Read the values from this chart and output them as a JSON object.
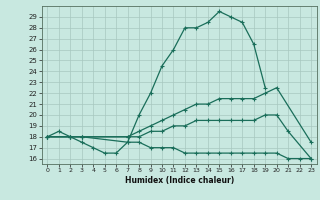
{
  "xlabel": "Humidex (Indice chaleur)",
  "xlim": [
    -0.5,
    23.5
  ],
  "ylim": [
    15.5,
    30.0
  ],
  "xticks": [
    0,
    1,
    2,
    3,
    4,
    5,
    6,
    7,
    8,
    9,
    10,
    11,
    12,
    13,
    14,
    15,
    16,
    17,
    18,
    19,
    20,
    21,
    22,
    23
  ],
  "yticks": [
    16,
    17,
    18,
    19,
    20,
    21,
    22,
    23,
    24,
    25,
    26,
    27,
    28,
    29
  ],
  "bg_color": "#c8e8e0",
  "grid_color": "#a8c8c0",
  "line_color": "#1a6e5a",
  "curve_main": {
    "x": [
      0,
      1,
      2,
      3,
      4,
      5,
      6,
      7,
      8,
      9,
      10,
      11,
      12,
      13,
      14,
      15,
      16,
      17,
      18,
      19
    ],
    "y": [
      18.0,
      18.5,
      18.0,
      17.5,
      17.0,
      16.5,
      16.5,
      17.5,
      20.0,
      22.0,
      24.5,
      26.0,
      28.0,
      28.0,
      28.5,
      29.5,
      29.0,
      28.5,
      26.5,
      22.5
    ]
  },
  "curve_mid": {
    "x": [
      0,
      2,
      3,
      7,
      8,
      9,
      10,
      11,
      12,
      13,
      14,
      15,
      16,
      17,
      18,
      19,
      20,
      23
    ],
    "y": [
      18.0,
      18.0,
      18.0,
      18.0,
      18.5,
      19.0,
      19.5,
      20.0,
      20.5,
      21.0,
      21.0,
      21.5,
      21.5,
      21.5,
      21.5,
      22.0,
      22.5,
      17.5
    ]
  },
  "curve_low1": {
    "x": [
      0,
      2,
      3,
      7,
      8,
      9,
      10,
      11,
      12,
      13,
      14,
      15,
      16,
      17,
      18,
      19,
      20,
      21,
      23
    ],
    "y": [
      18.0,
      18.0,
      18.0,
      18.0,
      18.0,
      18.5,
      18.5,
      19.0,
      19.0,
      19.5,
      19.5,
      19.5,
      19.5,
      19.5,
      19.5,
      20.0,
      20.0,
      18.5,
      16.0
    ]
  },
  "curve_low2": {
    "x": [
      0,
      2,
      3,
      7,
      8,
      9,
      10,
      11,
      12,
      13,
      14,
      15,
      16,
      17,
      18,
      19,
      20,
      21,
      22,
      23
    ],
    "y": [
      18.0,
      18.0,
      18.0,
      17.5,
      17.5,
      17.0,
      17.0,
      17.0,
      16.5,
      16.5,
      16.5,
      16.5,
      16.5,
      16.5,
      16.5,
      16.5,
      16.5,
      16.0,
      16.0,
      16.0
    ]
  }
}
